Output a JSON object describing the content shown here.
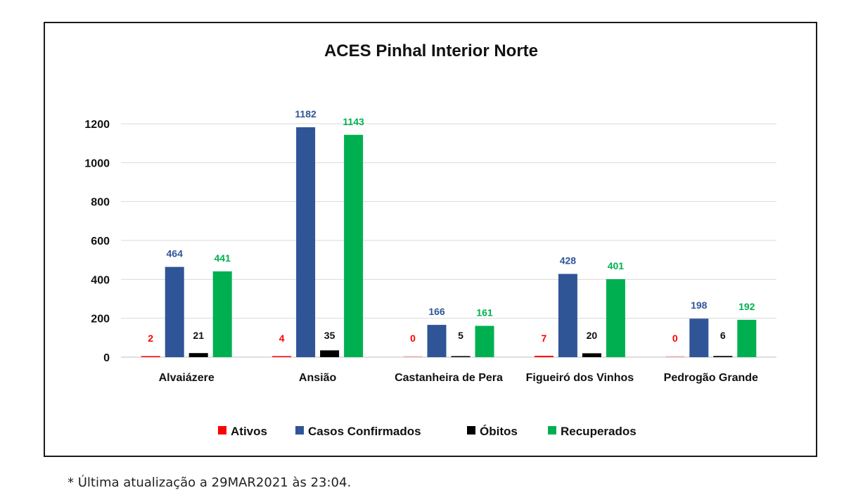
{
  "chart_data": {
    "type": "bar",
    "title": "ACES Pinhal Interior Norte",
    "xlabel": "",
    "ylabel": "",
    "ylim": [
      0,
      1200
    ],
    "yticks": [
      "0",
      "200",
      "400",
      "600",
      "800",
      "1000",
      "1200"
    ],
    "grid": true,
    "legend_position": "bottom",
    "categories": [
      "Alvaiázere",
      "Ansião",
      "Castanheira de Pera",
      "Figueiró dos Vinhos",
      "Pedrogão Grande"
    ],
    "series": [
      {
        "name": "Ativos",
        "color": "#ff0000",
        "values": [
          2,
          4,
          0,
          7,
          0
        ]
      },
      {
        "name": "Casos Confirmados",
        "color": "#2f5597",
        "values": [
          464,
          1182,
          166,
          428,
          198
        ]
      },
      {
        "name": "Óbitos",
        "color": "#000000",
        "values": [
          21,
          35,
          5,
          20,
          6
        ]
      },
      {
        "name": "Recuperados",
        "color": "#00b050",
        "values": [
          441,
          1143,
          161,
          401,
          192
        ]
      }
    ],
    "label_colors": [
      "#ff0000",
      "#2f5597",
      "#111111",
      "#00b050"
    ]
  },
  "footnote": "* Última atualização a 29MAR2021 às 23:04."
}
